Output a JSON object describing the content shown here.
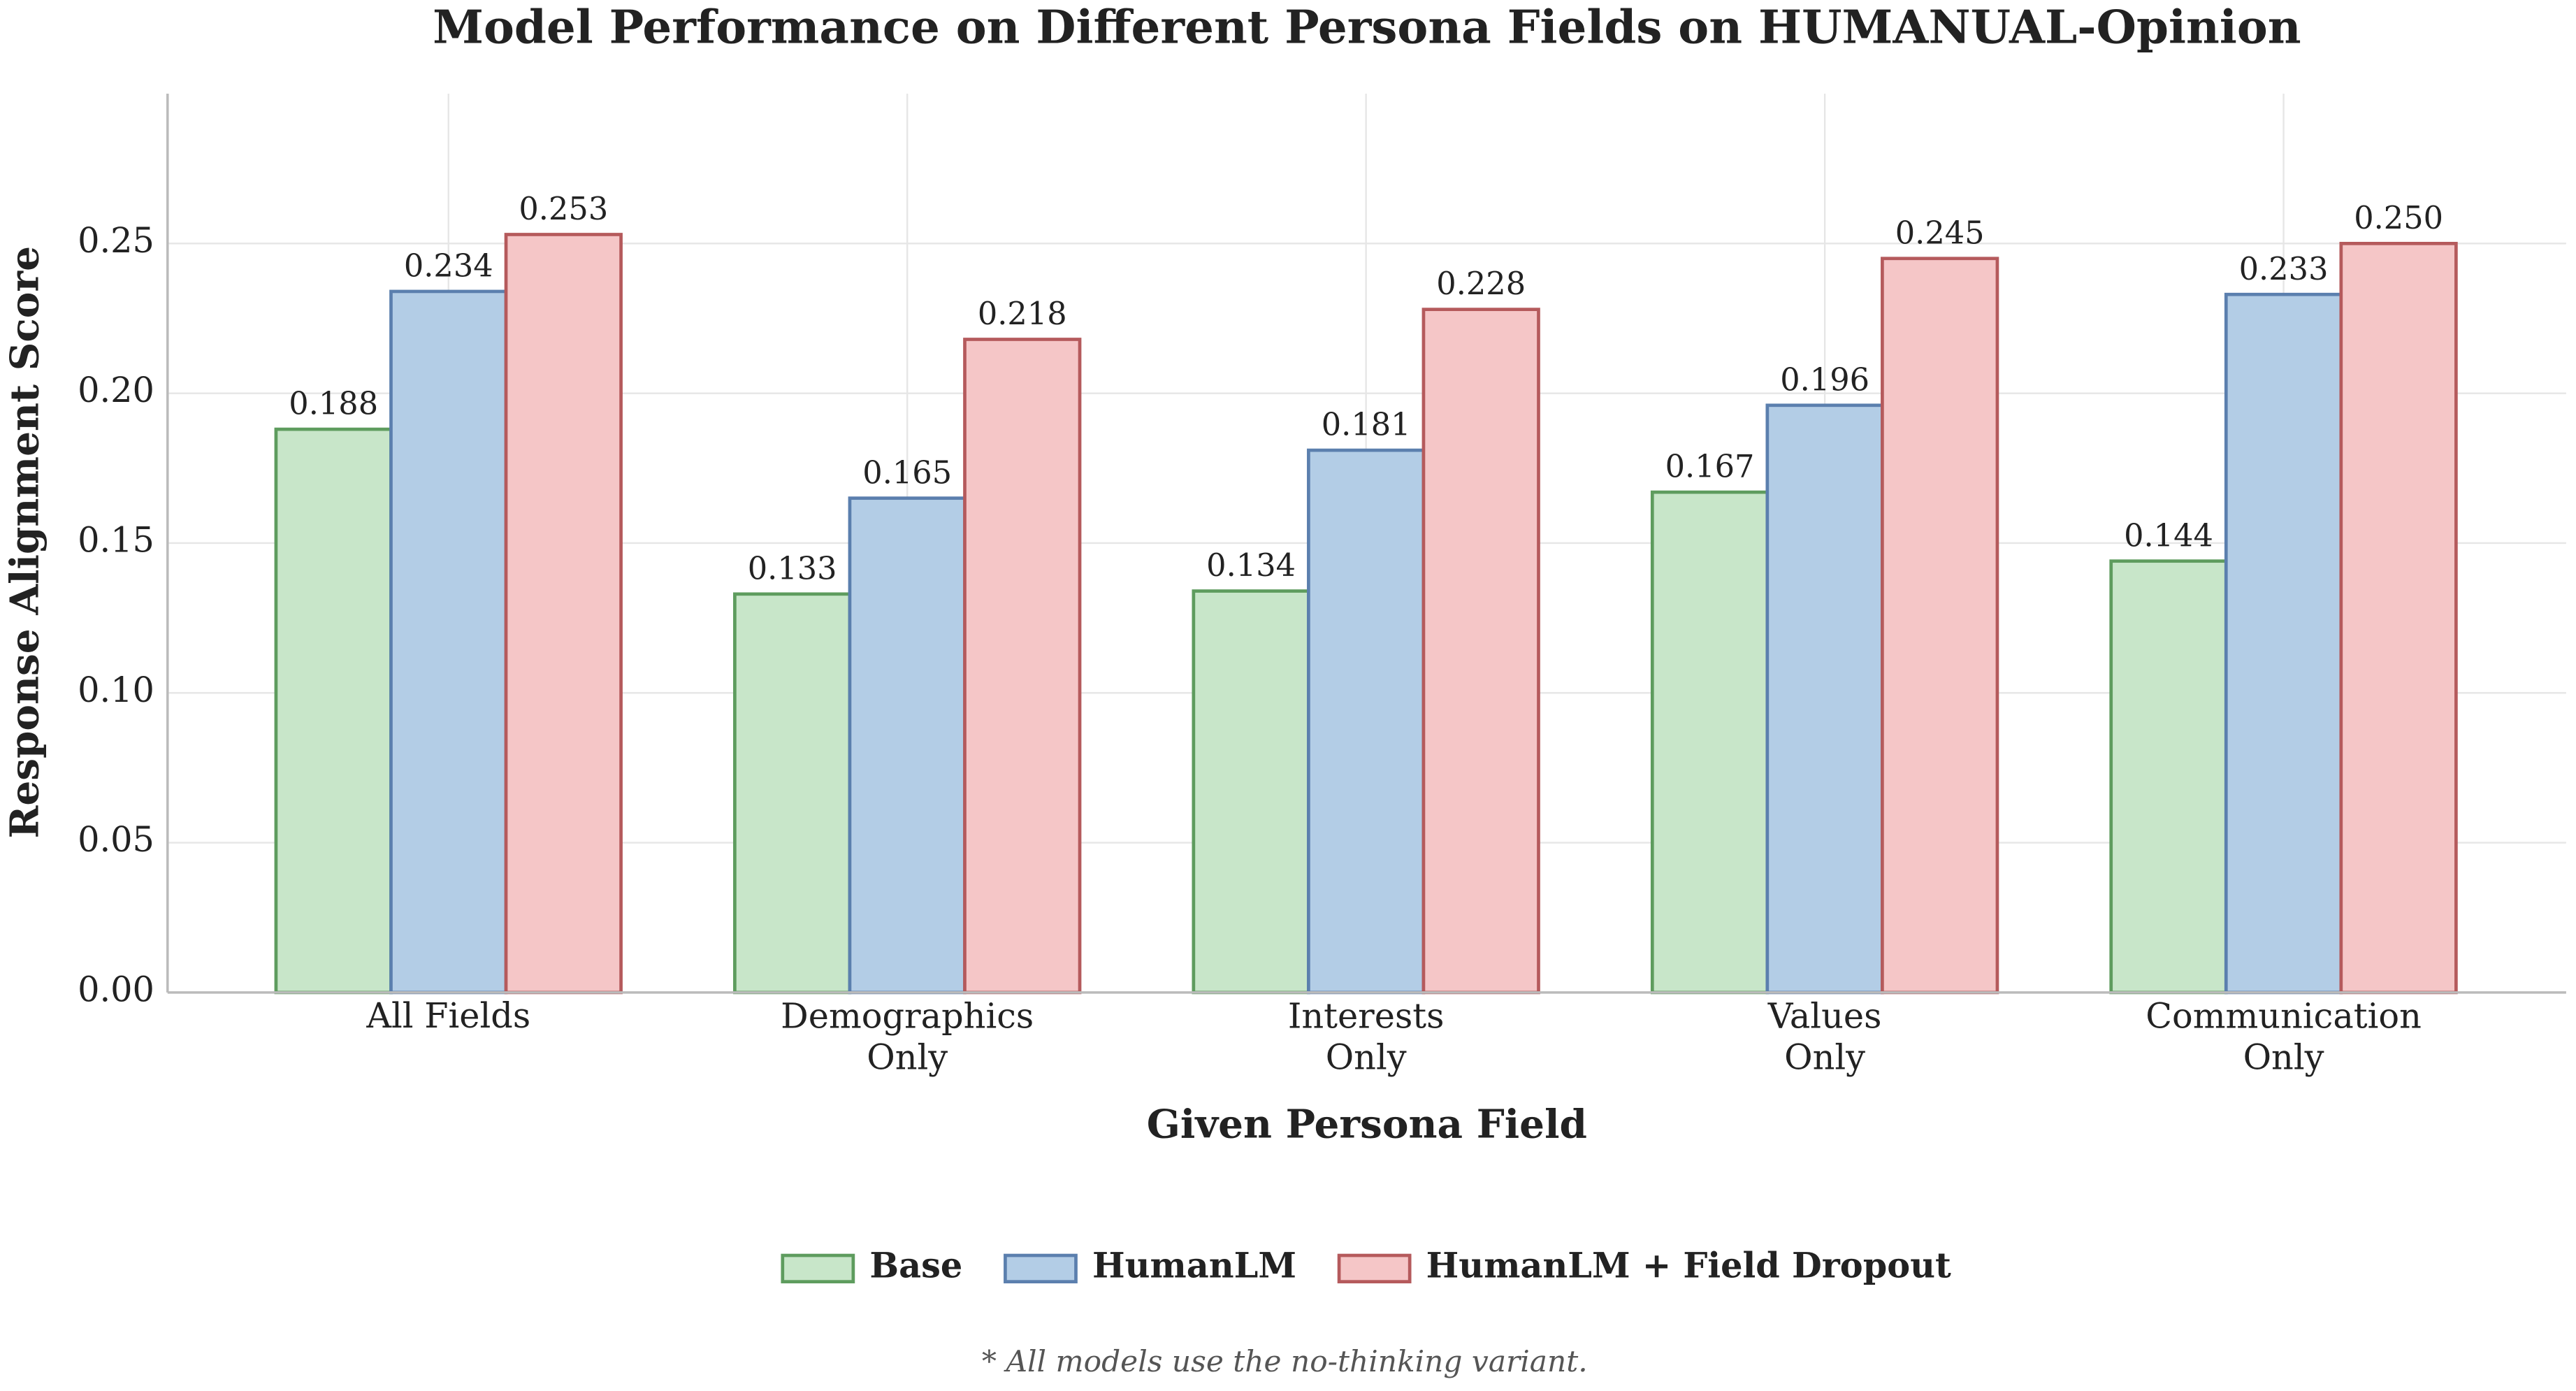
{
  "chart_data": {
    "type": "bar",
    "title": "Model Performance on Different Persona Fields on HUMANUAL-Opinion",
    "x_label": "Given Persona Field",
    "y_label": "Response Alignment Score",
    "footnote": "* All models use the no-thinking variant.",
    "categories": [
      "All Fields",
      "Demographics\nOnly",
      "Interests\nOnly",
      "Values\nOnly",
      "Communication\nOnly"
    ],
    "series": [
      {
        "name": "Base",
        "color": "#c8e6c9",
        "edge_color": "#5e9c5e",
        "values": [
          0.188,
          0.133,
          0.134,
          0.167,
          0.144
        ],
        "value_labels": [
          "0.188",
          "0.133",
          "0.134",
          "0.167",
          "0.144"
        ]
      },
      {
        "name": "HumanLM",
        "color": "#b3cde6",
        "edge_color": "#5b7fae",
        "values": [
          0.234,
          0.165,
          0.181,
          0.196,
          0.233
        ],
        "value_labels": [
          "0.234",
          "0.165",
          "0.181",
          "0.196",
          "0.233"
        ]
      },
      {
        "name": "HumanLM + Field Dropout",
        "color": "#f5c6c7",
        "edge_color": "#b55a5c",
        "values": [
          0.253,
          0.218,
          0.228,
          0.245,
          0.25
        ],
        "value_labels": [
          "0.253",
          "0.218",
          "0.228",
          "0.245",
          "0.250"
        ]
      }
    ],
    "ylim": [
      0,
      0.3
    ],
    "yticks": [
      {
        "value": 0,
        "label": "0.00"
      },
      {
        "value": 0.05,
        "label": "0.05"
      },
      {
        "value": 0.1,
        "label": "0.10"
      },
      {
        "value": 0.15,
        "label": "0.15"
      },
      {
        "value": 0.2,
        "label": "0.20"
      },
      {
        "value": 0.25,
        "label": "0.25"
      }
    ],
    "grid": true,
    "legend": "bottom"
  }
}
